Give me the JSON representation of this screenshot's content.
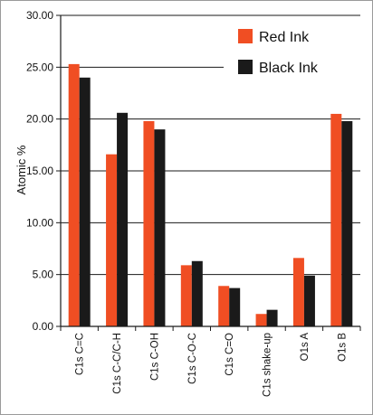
{
  "chart_data": {
    "type": "bar",
    "title": "",
    "xlabel": "",
    "ylabel": "Atomic %",
    "ylim": [
      0,
      30
    ],
    "yticks": [
      "0.00",
      "5.00",
      "10.00",
      "15.00",
      "20.00",
      "25.00",
      "30.00"
    ],
    "grid": true,
    "legend_position": "top-right",
    "categories": [
      "C1s C=C",
      "C1s C-C/C-H",
      "C1s C-OH",
      "C1s C-O-C",
      "C1s C=O",
      "C1s shake-up",
      "O1s A",
      "O1s B"
    ],
    "series": [
      {
        "name": "Red Ink",
        "color": "#f04e23",
        "values": [
          25.3,
          16.6,
          19.8,
          5.9,
          3.9,
          1.2,
          6.6,
          20.5
        ]
      },
      {
        "name": "Black Ink",
        "color": "#1a1a1a",
        "values": [
          24.0,
          20.6,
          19.0,
          6.3,
          3.7,
          1.6,
          4.9,
          19.8
        ]
      }
    ]
  }
}
